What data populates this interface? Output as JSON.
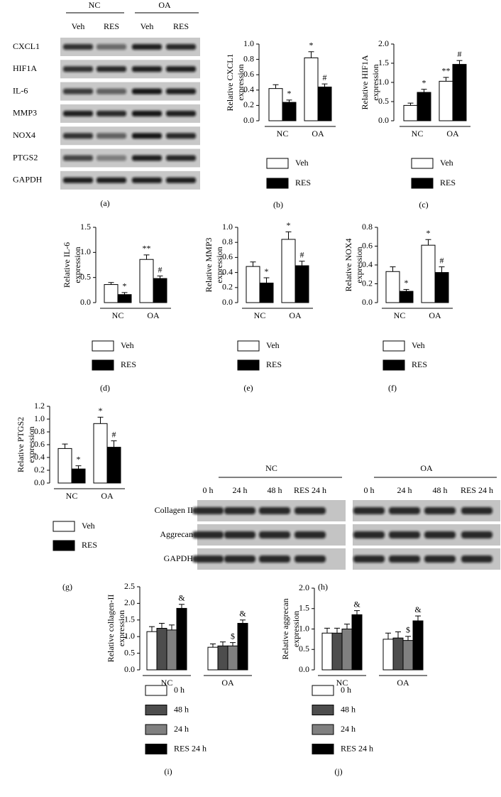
{
  "blot_a": {
    "panel": "(a)",
    "groups": [
      "NC",
      "OA"
    ],
    "lanes": [
      "Veh",
      "RES",
      "Veh",
      "RES"
    ],
    "rows": [
      "CXCL1",
      "HIF1A",
      "IL-6",
      "MMP3",
      "NOX4",
      "PTGS2",
      "GAPDH"
    ]
  },
  "blot_h": {
    "panel": "(h)",
    "groups": [
      "NC",
      "OA"
    ],
    "lanes": [
      "0 h",
      "24 h",
      "48 h",
      "RES 24 h"
    ],
    "rows": [
      "Collagen II",
      "Aggrecan",
      "GAPDH"
    ]
  },
  "chart_data": [
    {
      "type": "bar",
      "panel": "(b)",
      "ylabel": [
        "Relative CXCL1",
        "expression"
      ],
      "categories": [
        "NC",
        "OA"
      ],
      "series": [
        {
          "name": "Veh",
          "color": "#ffffff",
          "values": [
            0.42,
            0.82
          ],
          "errors": [
            0.05,
            0.08
          ],
          "annotations": [
            null,
            "*"
          ]
        },
        {
          "name": "RES",
          "color": "#000000",
          "values": [
            0.24,
            0.44
          ],
          "errors": [
            0.03,
            0.04
          ],
          "annotations": [
            "*",
            "#"
          ]
        }
      ],
      "ylim": [
        0,
        1
      ],
      "yticks": [
        {
          "value": 0,
          "label": "0.0"
        },
        0.2,
        0.4,
        0.6,
        0.8,
        {
          "value": 1,
          "label": "1.0"
        }
      ]
    },
    {
      "type": "bar",
      "panel": "(c)",
      "ylabel": [
        "Relative HIF1A",
        "expression"
      ],
      "categories": [
        "NC",
        "OA"
      ],
      "series": [
        {
          "name": "Veh",
          "color": "#ffffff",
          "values": [
            0.4,
            1.03
          ],
          "errors": [
            0.06,
            0.1
          ],
          "annotations": [
            null,
            "**"
          ]
        },
        {
          "name": "RES",
          "color": "#000000",
          "values": [
            0.74,
            1.47
          ],
          "errors": [
            0.08,
            0.1
          ],
          "annotations": [
            "*",
            "#"
          ]
        }
      ],
      "ylim": [
        0,
        2
      ],
      "yticks": [
        {
          "value": 0,
          "label": "0.0"
        },
        0.5,
        {
          "value": 1,
          "label": "1.0"
        },
        1.5,
        {
          "value": 2,
          "label": "2.0"
        }
      ]
    },
    {
      "type": "bar",
      "panel": "(d)",
      "ylabel": [
        "Relative IL-6",
        "expression"
      ],
      "categories": [
        "NC",
        "OA"
      ],
      "series": [
        {
          "name": "Veh",
          "color": "#ffffff",
          "values": [
            0.36,
            0.86
          ],
          "errors": [
            0.04,
            0.09
          ],
          "annotations": [
            null,
            "**"
          ]
        },
        {
          "name": "RES",
          "color": "#000000",
          "values": [
            0.16,
            0.48
          ],
          "errors": [
            0.04,
            0.05
          ],
          "annotations": [
            "*",
            "#"
          ]
        }
      ],
      "ylim": [
        0,
        1.5
      ],
      "yticks": [
        {
          "value": 0,
          "label": "0.0"
        },
        0.5,
        {
          "value": 1,
          "label": "1.0"
        },
        1.5
      ]
    },
    {
      "type": "bar",
      "panel": "(e)",
      "ylabel": [
        "Relative MMP3",
        "expression"
      ],
      "categories": [
        "NC",
        "OA"
      ],
      "series": [
        {
          "name": "Veh",
          "color": "#ffffff",
          "values": [
            0.48,
            0.84
          ],
          "errors": [
            0.06,
            0.1
          ],
          "annotations": [
            null,
            "*"
          ]
        },
        {
          "name": "RES",
          "color": "#000000",
          "values": [
            0.26,
            0.49
          ],
          "errors": [
            0.07,
            0.06
          ],
          "annotations": [
            "*",
            "#"
          ]
        }
      ],
      "ylim": [
        0,
        1
      ],
      "yticks": [
        {
          "value": 0,
          "label": "0.0"
        },
        0.2,
        0.4,
        0.6,
        0.8,
        {
          "value": 1,
          "label": "1.0"
        }
      ]
    },
    {
      "type": "bar",
      "panel": "(f)",
      "ylabel": [
        "Relative NOX4",
        "expression"
      ],
      "categories": [
        "NC",
        "OA"
      ],
      "series": [
        {
          "name": "Veh",
          "color": "#ffffff",
          "values": [
            0.33,
            0.61
          ],
          "errors": [
            0.05,
            0.06
          ],
          "annotations": [
            null,
            "*"
          ]
        },
        {
          "name": "RES",
          "color": "#000000",
          "values": [
            0.12,
            0.32
          ],
          "errors": [
            0.02,
            0.06
          ],
          "annotations": [
            "*",
            "#"
          ]
        }
      ],
      "ylim": [
        0,
        0.8
      ],
      "yticks": [
        {
          "value": 0,
          "label": "0.0"
        },
        0.2,
        0.4,
        0.6,
        0.8
      ]
    },
    {
      "type": "bar",
      "panel": "(g)",
      "ylabel": [
        "Relative PTGS2",
        "expression"
      ],
      "categories": [
        "NC",
        "OA"
      ],
      "series": [
        {
          "name": "Veh",
          "color": "#ffffff",
          "values": [
            0.54,
            0.93
          ],
          "errors": [
            0.07,
            0.1
          ],
          "annotations": [
            null,
            "*"
          ]
        },
        {
          "name": "RES",
          "color": "#000000",
          "values": [
            0.22,
            0.56
          ],
          "errors": [
            0.05,
            0.1
          ],
          "annotations": [
            "*",
            "#"
          ]
        }
      ],
      "ylim": [
        0,
        1.2
      ],
      "yticks": [
        {
          "value": 0,
          "label": "0.0"
        },
        0.2,
        0.4,
        0.6,
        0.8,
        {
          "value": 1,
          "label": "1.0"
        },
        1.2
      ]
    },
    {
      "type": "bar",
      "panel": "(i)",
      "ylabel": [
        "Relative collagen-II",
        "expression"
      ],
      "categories": [
        "NC",
        "OA"
      ],
      "series": [
        {
          "name": "0 h",
          "color": "#ffffff",
          "values": [
            1.15,
            0.68
          ],
          "errors": [
            0.15,
            0.1
          ],
          "annotations": [
            null,
            null
          ]
        },
        {
          "name": "48 h",
          "color": "#4d4d4d",
          "values": [
            1.25,
            0.72
          ],
          "errors": [
            0.15,
            0.12
          ],
          "annotations": [
            null,
            null
          ]
        },
        {
          "name": "24 h",
          "color": "#808080",
          "values": [
            1.2,
            0.72
          ],
          "errors": [
            0.15,
            0.1
          ],
          "annotations": [
            null,
            "$"
          ]
        },
        {
          "name": "RES 24 h",
          "color": "#000000",
          "values": [
            1.85,
            1.4
          ],
          "errors": [
            0.12,
            0.1
          ],
          "annotations": [
            "&",
            "&"
          ]
        }
      ],
      "ylim": [
        0,
        2.5
      ],
      "yticks": [
        {
          "value": 0,
          "label": "0.0"
        },
        0.5,
        {
          "value": 1,
          "label": "1.0"
        },
        1.5,
        {
          "value": 2,
          "label": "2.0"
        },
        2.5
      ]
    },
    {
      "type": "bar",
      "panel": "(j)",
      "ylabel": [
        "Relative aggrecan",
        "expression"
      ],
      "categories": [
        "NC",
        "OA"
      ],
      "series": [
        {
          "name": "0 h",
          "color": "#ffffff",
          "values": [
            0.9,
            0.75
          ],
          "errors": [
            0.12,
            0.15
          ],
          "annotations": [
            null,
            null
          ]
        },
        {
          "name": "48 h",
          "color": "#4d4d4d",
          "values": [
            0.9,
            0.78
          ],
          "errors": [
            0.12,
            0.15
          ],
          "annotations": [
            null,
            null
          ]
        },
        {
          "name": "24 h",
          "color": "#808080",
          "values": [
            1.0,
            0.72
          ],
          "errors": [
            0.12,
            0.1
          ],
          "annotations": [
            null,
            "$"
          ]
        },
        {
          "name": "RES 24 h",
          "color": "#000000",
          "values": [
            1.35,
            1.2
          ],
          "errors": [
            0.1,
            0.12
          ],
          "annotations": [
            "&",
            "&"
          ]
        }
      ],
      "ylim": [
        0,
        2
      ],
      "yticks": [
        {
          "value": 0,
          "label": "0.0"
        },
        0.5,
        {
          "value": 1,
          "label": "1.0"
        },
        1.5,
        {
          "value": 2,
          "label": "2.0"
        }
      ]
    }
  ]
}
